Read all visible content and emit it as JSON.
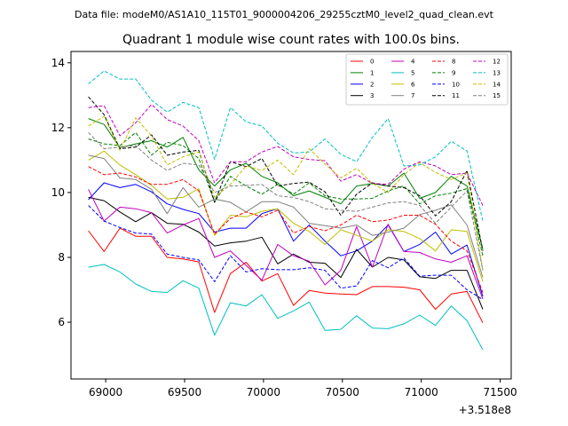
{
  "header": {
    "datafile": "Data file: modeM0/AS1A10_115T01_9000004206_29255cztM0_level2_quad_clean.evt"
  },
  "chart_data": {
    "type": "line",
    "title": "Quadrant 1 module wise count rates with 100.0s bins.",
    "xlabel": "",
    "ylabel": "",
    "x_offset_label": "+3.518e8",
    "x_offset": 351800000,
    "xlim": [
      68780,
      71570
    ],
    "ylim": [
      4.25,
      14.35
    ],
    "xticks": [
      69000,
      69500,
      70000,
      70500,
      71000,
      71500
    ],
    "yticks": [
      6,
      8,
      10,
      12,
      14
    ],
    "legend_position": "top-right",
    "x": [
      68890,
      68990,
      69090,
      69190,
      69290,
      69390,
      69490,
      69590,
      69690,
      69790,
      69890,
      69990,
      70090,
      70190,
      70290,
      70390,
      70490,
      70590,
      70690,
      70790,
      70890,
      70990,
      71090,
      71190,
      71290,
      71390
    ],
    "series": [
      {
        "name": "0",
        "color": "#ff0000",
        "dash": "solid",
        "values": [
          8.82,
          8.18,
          8.9,
          8.65,
          8.65,
          8.0,
          7.95,
          7.86,
          6.3,
          7.5,
          7.85,
          7.27,
          7.5,
          6.52,
          6.98,
          6.9,
          6.87,
          6.85,
          7.1,
          7.1,
          7.08,
          7.0,
          6.4,
          6.87,
          6.95,
          5.98
        ]
      },
      {
        "name": "1",
        "color": "#008000",
        "dash": "solid",
        "values": [
          12.28,
          12.1,
          11.38,
          11.5,
          11.6,
          11.4,
          11.7,
          10.7,
          10.2,
          10.7,
          10.9,
          10.5,
          10.3,
          9.9,
          10.05,
          9.85,
          9.65,
          10.2,
          10.28,
          10.2,
          10.6,
          9.82,
          10.0,
          10.5,
          10.2,
          8.25
        ]
      },
      {
        "name": "2",
        "color": "#0000ff",
        "dash": "solid",
        "values": [
          9.78,
          10.3,
          10.15,
          10.25,
          10.02,
          9.65,
          9.48,
          9.35,
          8.78,
          8.9,
          8.9,
          9.35,
          9.5,
          8.5,
          9.0,
          8.5,
          8.05,
          8.2,
          8.5,
          9.0,
          8.18,
          8.4,
          8.78,
          8.1,
          8.38,
          6.8
        ]
      },
      {
        "name": "3",
        "color": "#000000",
        "dash": "solid",
        "values": [
          9.85,
          9.75,
          9.4,
          9.1,
          9.38,
          9.05,
          9.02,
          8.78,
          8.35,
          8.45,
          8.5,
          8.62,
          7.8,
          8.1,
          7.85,
          7.82,
          7.38,
          8.25,
          7.7,
          8.0,
          7.92,
          7.4,
          7.35,
          7.6,
          7.6,
          6.4
        ]
      },
      {
        "name": "4",
        "color": "#c000c0",
        "dash": "solid",
        "values": [
          10.1,
          9.12,
          9.55,
          9.5,
          9.38,
          8.75,
          9.0,
          9.2,
          8.0,
          8.2,
          7.75,
          7.3,
          8.4,
          8.05,
          7.88,
          7.15,
          7.6,
          8.95,
          7.7,
          9.02,
          8.18,
          8.15,
          7.95,
          7.85,
          8.05,
          6.72
        ]
      },
      {
        "name": "5",
        "color": "#00bfbf",
        "dash": "solid",
        "values": [
          7.7,
          7.78,
          7.55,
          7.18,
          6.95,
          6.92,
          7.28,
          7.05,
          5.6,
          6.6,
          6.5,
          6.85,
          6.12,
          6.35,
          6.62,
          5.75,
          5.78,
          6.2,
          5.82,
          5.8,
          5.95,
          6.22,
          5.9,
          6.5,
          6.05,
          5.15
        ]
      },
      {
        "name": "6",
        "color": "#bfbf00",
        "dash": "solid",
        "values": [
          11.0,
          11.28,
          10.85,
          10.55,
          10.22,
          9.8,
          9.85,
          10.12,
          8.68,
          9.3,
          9.25,
          9.42,
          9.5,
          9.05,
          8.8,
          8.4,
          8.85,
          8.68,
          8.5,
          8.85,
          8.8,
          8.58,
          8.2,
          8.85,
          8.8,
          7.25
        ]
      },
      {
        "name": "7",
        "color": "#808080",
        "dash": "solid",
        "values": [
          11.15,
          11.05,
          10.45,
          10.4,
          10.1,
          9.35,
          10.15,
          9.55,
          9.8,
          9.7,
          9.4,
          9.72,
          9.72,
          9.55,
          9.05,
          8.98,
          8.9,
          9.0,
          8.68,
          8.78,
          8.9,
          9.32,
          9.45,
          9.62,
          9.0,
          7.38
        ]
      },
      {
        "name": "8",
        "color": "#ff0000",
        "dash": "dashed",
        "values": [
          10.8,
          10.55,
          10.6,
          10.48,
          10.25,
          10.25,
          10.4,
          10.05,
          8.72,
          9.2,
          9.4,
          9.25,
          9.45,
          8.75,
          8.95,
          8.82,
          9.0,
          9.3,
          9.1,
          9.15,
          9.3,
          9.3,
          9.02,
          8.5,
          8.2,
          6.92
        ]
      },
      {
        "name": "9",
        "color": "#008000",
        "dash": "dashed",
        "values": [
          11.65,
          11.5,
          11.45,
          11.85,
          11.15,
          11.55,
          11.45,
          11.05,
          9.7,
          10.5,
          10.2,
          9.95,
          10.25,
          9.95,
          10.3,
          9.9,
          9.8,
          9.8,
          9.82,
          10.05,
          10.2,
          9.65,
          9.9,
          9.98,
          10.12,
          8.05
        ]
      },
      {
        "name": "10",
        "color": "#0000ff",
        "dash": "dashed",
        "values": [
          9.6,
          9.12,
          8.92,
          8.75,
          8.72,
          8.1,
          8.0,
          7.92,
          7.25,
          8.05,
          7.55,
          7.65,
          7.62,
          7.62,
          7.68,
          7.6,
          7.05,
          7.12,
          7.9,
          7.68,
          7.98,
          7.42,
          7.45,
          7.45,
          7.0,
          6.7
        ]
      },
      {
        "name": "11",
        "color": "#000000",
        "dash": "dashed",
        "values": [
          12.95,
          12.4,
          11.35,
          11.4,
          11.78,
          11.15,
          11.25,
          11.3,
          9.7,
          10.95,
          10.8,
          11.05,
          10.2,
          10.28,
          10.32,
          10.02,
          9.3,
          9.95,
          10.3,
          10.2,
          10.15,
          9.9,
          9.28,
          9.72,
          10.68,
          8.2
        ]
      },
      {
        "name": "12",
        "color": "#c000c0",
        "dash": "dashed",
        "values": [
          12.62,
          12.68,
          11.75,
          12.15,
          12.72,
          12.25,
          12.05,
          11.6,
          10.3,
          10.95,
          10.95,
          11.25,
          11.42,
          11.1,
          11.02,
          10.98,
          10.35,
          10.55,
          10.28,
          10.25,
          10.72,
          10.95,
          10.82,
          10.55,
          10.6,
          9.6
        ]
      },
      {
        "name": "13",
        "color": "#00bfbf",
        "dash": "dashed",
        "values": [
          13.35,
          13.75,
          13.5,
          13.5,
          12.85,
          12.48,
          12.78,
          12.62,
          11.02,
          12.62,
          12.18,
          12.05,
          11.52,
          11.22,
          11.25,
          11.65,
          11.18,
          10.95,
          11.7,
          12.28,
          10.82,
          10.85,
          11.1,
          11.58,
          11.28,
          9.12
        ]
      },
      {
        "name": "14",
        "color": "#bfbf00",
        "dash": "dashed",
        "values": [
          12.05,
          12.35,
          11.3,
          12.3,
          11.75,
          10.85,
          11.1,
          11.25,
          9.85,
          10.25,
          10.82,
          10.68,
          11.0,
          10.55,
          11.35,
          10.88,
          10.45,
          10.75,
          10.28,
          10.0,
          10.55,
          10.92,
          10.62,
          10.4,
          10.6,
          7.62
        ]
      },
      {
        "name": "15",
        "color": "#808080",
        "dash": "dashed",
        "values": [
          11.85,
          11.35,
          11.4,
          11.45,
          11.0,
          10.68,
          10.9,
          10.85,
          10.0,
          10.2,
          10.22,
          10.25,
          9.9,
          9.85,
          9.72,
          9.5,
          9.45,
          9.42,
          9.55,
          9.68,
          9.72,
          9.6,
          9.05,
          9.55,
          10.05,
          7.6
        ]
      }
    ]
  }
}
